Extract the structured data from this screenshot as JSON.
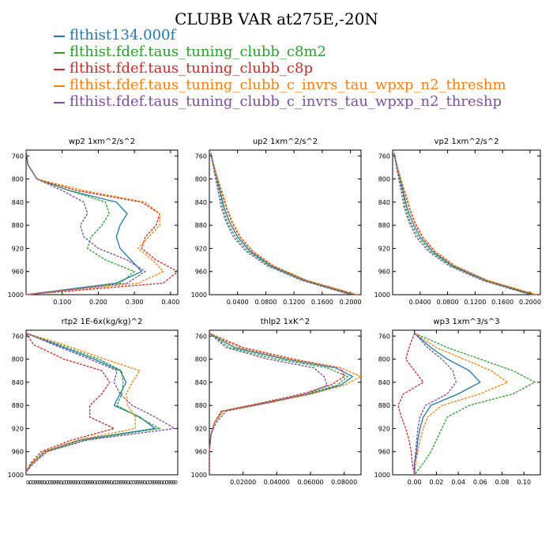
{
  "title": "CLUBB VAR at275E,-20N",
  "legend": [
    {
      "label": "flthist134.000f",
      "color": "#1f77b4",
      "dash": "solid"
    },
    {
      "label": "flthist.fdef.taus_tuning_clubb_c8m2",
      "color": "#2ca02c",
      "dash": "dashed"
    },
    {
      "label": "flthist.fdef.taus_tuning_clubb_c8p",
      "color": "#d62728",
      "dash": "dashed"
    },
    {
      "label": "flthist.fdef.taus_tuning_clubb_c_invrs_tau_wpxp_n2_threshm",
      "color": "#ff7f0e",
      "dash": "dashed"
    },
    {
      "label": "flthist.fdef.taus_tuning_clubb_c_invrs_tau_wpxp_n2_threshp",
      "color": "#7e4ea3",
      "dash": "dashed"
    }
  ],
  "chart_data": [
    {
      "type": "line",
      "title": "wp2  1xm^2/s^2",
      "xlim": [
        0,
        0.42
      ],
      "ylim": [
        1000,
        750
      ],
      "x_ticks": [
        "0.100",
        "0.200",
        "0.300",
        "0.400"
      ],
      "x_tick_values": [
        0.1,
        0.2,
        0.3,
        0.4
      ],
      "y_ticks": [
        "760",
        "800",
        "840",
        "880",
        "920",
        "960",
        "1000"
      ],
      "y": [
        750,
        775,
        800,
        820,
        840,
        860,
        880,
        900,
        920,
        940,
        960,
        980,
        1000
      ],
      "series": [
        {
          "values": [
            0.0,
            0.005,
            0.03,
            0.12,
            0.25,
            0.28,
            0.26,
            0.25,
            0.26,
            0.29,
            0.32,
            0.25,
            0.0
          ]
        },
        {
          "values": [
            0.0,
            0.005,
            0.03,
            0.12,
            0.22,
            0.23,
            0.21,
            0.18,
            0.17,
            0.22,
            0.3,
            0.26,
            0.0
          ]
        },
        {
          "values": [
            0.0,
            0.005,
            0.03,
            0.14,
            0.32,
            0.37,
            0.36,
            0.33,
            0.32,
            0.36,
            0.42,
            0.38,
            0.0
          ]
        },
        {
          "values": [
            0.0,
            0.005,
            0.03,
            0.16,
            0.33,
            0.37,
            0.37,
            0.34,
            0.31,
            0.35,
            0.38,
            0.31,
            0.0
          ]
        },
        {
          "values": [
            0.0,
            0.005,
            0.03,
            0.1,
            0.16,
            0.17,
            0.15,
            0.16,
            0.2,
            0.28,
            0.33,
            0.28,
            0.0
          ]
        }
      ]
    },
    {
      "type": "line",
      "title": "up2  1xm^2/s^2",
      "xlim": [
        0,
        0.215
      ],
      "ylim": [
        1000,
        750
      ],
      "x_ticks": [
        "0.0400",
        "0.0800",
        "0.1200",
        "0.1600",
        "0.2000"
      ],
      "x_tick_values": [
        0.04,
        0.08,
        0.12,
        0.16,
        0.2
      ],
      "y_ticks": [
        "760",
        "800",
        "840",
        "880",
        "920",
        "960",
        "1000"
      ],
      "y": [
        755,
        775,
        800,
        825,
        850,
        875,
        900,
        925,
        950,
        975,
        1000
      ],
      "series": [
        {
          "values": [
            0.002,
            0.006,
            0.011,
            0.016,
            0.021,
            0.029,
            0.04,
            0.058,
            0.087,
            0.135,
            0.205
          ]
        },
        {
          "values": [
            0.002,
            0.005,
            0.01,
            0.015,
            0.019,
            0.026,
            0.037,
            0.055,
            0.085,
            0.133,
            0.203
          ]
        },
        {
          "values": [
            0.002,
            0.006,
            0.012,
            0.018,
            0.024,
            0.032,
            0.043,
            0.061,
            0.09,
            0.137,
            0.208
          ]
        },
        {
          "values": [
            0.002,
            0.006,
            0.012,
            0.019,
            0.025,
            0.033,
            0.044,
            0.062,
            0.091,
            0.138,
            0.21
          ]
        },
        {
          "values": [
            0.002,
            0.005,
            0.009,
            0.013,
            0.017,
            0.024,
            0.034,
            0.052,
            0.082,
            0.13,
            0.2
          ]
        }
      ]
    },
    {
      "type": "line",
      "title": "vp2  1xm^2/s^2",
      "xlim": [
        0,
        0.215
      ],
      "ylim": [
        1000,
        750
      ],
      "x_ticks": [
        "0.0400",
        "0.0800",
        "0.1200",
        "0.1600",
        "0.2000"
      ],
      "x_tick_values": [
        0.04,
        0.08,
        0.12,
        0.16,
        0.2
      ],
      "y_ticks": [
        "760",
        "800",
        "840",
        "880",
        "920",
        "960",
        "1000"
      ],
      "y": [
        755,
        775,
        800,
        825,
        850,
        875,
        900,
        925,
        950,
        975,
        1000
      ],
      "series": [
        {
          "values": [
            0.002,
            0.006,
            0.011,
            0.016,
            0.021,
            0.029,
            0.04,
            0.058,
            0.087,
            0.135,
            0.205
          ]
        },
        {
          "values": [
            0.002,
            0.005,
            0.01,
            0.015,
            0.019,
            0.026,
            0.037,
            0.055,
            0.085,
            0.133,
            0.203
          ]
        },
        {
          "values": [
            0.002,
            0.006,
            0.012,
            0.018,
            0.024,
            0.032,
            0.043,
            0.061,
            0.09,
            0.137,
            0.208
          ]
        },
        {
          "values": [
            0.002,
            0.006,
            0.012,
            0.019,
            0.025,
            0.033,
            0.044,
            0.062,
            0.091,
            0.138,
            0.21
          ]
        },
        {
          "values": [
            0.002,
            0.005,
            0.009,
            0.013,
            0.017,
            0.024,
            0.034,
            0.052,
            0.082,
            0.13,
            0.2
          ]
        }
      ]
    },
    {
      "type": "line",
      "title": "rtp2  1E-6x(kg/kg)^2",
      "xlim": [
        0,
        1.0
      ],
      "ylim": [
        1000,
        750
      ],
      "x_ticks": [
        "0.0099990.0099990.0099990.0099990.0099990.0099990.0099990.0099990.009990"
      ],
      "x_tick_values": [
        0.5
      ],
      "y_ticks": [
        "760",
        "800",
        "840",
        "880",
        "920",
        "960",
        "1000"
      ],
      "y": [
        755,
        775,
        800,
        820,
        840,
        860,
        880,
        900,
        920,
        940,
        960,
        980,
        995
      ],
      "series": [
        {
          "values": [
            0.0,
            0.2,
            0.45,
            0.62,
            0.66,
            0.62,
            0.58,
            0.75,
            0.85,
            0.35,
            0.12,
            0.04,
            0.0
          ]
        },
        {
          "values": [
            0.0,
            0.22,
            0.48,
            0.63,
            0.64,
            0.63,
            0.6,
            0.74,
            0.88,
            0.38,
            0.13,
            0.04,
            0.0
          ]
        },
        {
          "values": [
            0.0,
            0.05,
            0.25,
            0.5,
            0.55,
            0.5,
            0.42,
            0.42,
            0.58,
            0.3,
            0.1,
            0.03,
            0.0
          ]
        },
        {
          "values": [
            0.0,
            0.25,
            0.52,
            0.75,
            0.7,
            0.66,
            0.67,
            0.72,
            0.72,
            0.34,
            0.12,
            0.04,
            0.0
          ]
        },
        {
          "values": [
            0.0,
            0.18,
            0.42,
            0.6,
            0.58,
            0.62,
            0.7,
            0.85,
            0.98,
            0.4,
            0.14,
            0.05,
            0.0
          ]
        }
      ]
    },
    {
      "type": "line",
      "title": "thlp2  1xK^2",
      "xlim": [
        0,
        0.09
      ],
      "ylim": [
        1000,
        750
      ],
      "x_ticks": [
        "0.02000",
        "0.04000",
        "0.06000",
        "0.08000"
      ],
      "x_tick_values": [
        0.02,
        0.04,
        0.06,
        0.08
      ],
      "y_ticks": [
        "760",
        "800",
        "840",
        "880",
        "920",
        "960",
        "1000"
      ],
      "y": [
        755,
        780,
        800,
        815,
        830,
        845,
        860,
        875,
        890,
        910,
        930,
        960,
        1000
      ],
      "series": [
        {
          "values": [
            0.0,
            0.015,
            0.045,
            0.075,
            0.085,
            0.078,
            0.06,
            0.035,
            0.008,
            0.003,
            0.001,
            0.0,
            0.0
          ]
        },
        {
          "values": [
            0.0,
            0.012,
            0.04,
            0.07,
            0.082,
            0.076,
            0.058,
            0.034,
            0.008,
            0.003,
            0.001,
            0.0,
            0.0
          ]
        },
        {
          "values": [
            0.0,
            0.02,
            0.05,
            0.078,
            0.08,
            0.072,
            0.055,
            0.032,
            0.007,
            0.003,
            0.001,
            0.0,
            0.0
          ]
        },
        {
          "values": [
            0.0,
            0.018,
            0.048,
            0.078,
            0.09,
            0.08,
            0.061,
            0.036,
            0.008,
            0.003,
            0.001,
            0.0,
            0.0
          ]
        },
        {
          "values": [
            0.0,
            0.01,
            0.035,
            0.062,
            0.068,
            0.07,
            0.058,
            0.036,
            0.01,
            0.004,
            0.001,
            0.0,
            0.0
          ]
        }
      ]
    },
    {
      "type": "line",
      "title": "wp3  1xm^3/s^3",
      "xlim": [
        -0.02,
        0.115
      ],
      "ylim": [
        1000,
        750
      ],
      "x_ticks": [
        "0.00",
        "0.02",
        "0.04",
        "0.06",
        "0.08",
        "0.10"
      ],
      "x_tick_values": [
        0.0,
        0.02,
        0.04,
        0.06,
        0.08,
        0.1
      ],
      "y_ticks": [
        "760",
        "800",
        "840",
        "880",
        "920",
        "960",
        "1000"
      ],
      "y": [
        755,
        780,
        800,
        820,
        840,
        860,
        880,
        900,
        920,
        940,
        960,
        980,
        1000
      ],
      "series": [
        {
          "values": [
            0.0,
            0.015,
            0.03,
            0.05,
            0.06,
            0.04,
            0.015,
            0.008,
            0.005,
            0.003,
            0.002,
            0.0,
            0.0
          ]
        },
        {
          "values": [
            0.0,
            0.03,
            0.06,
            0.09,
            0.11,
            0.09,
            0.05,
            0.03,
            0.025,
            0.02,
            0.015,
            0.008,
            0.0
          ]
        },
        {
          "values": [
            0.0,
            -0.005,
            -0.008,
            0.0,
            0.008,
            -0.01,
            -0.015,
            -0.012,
            -0.008,
            -0.005,
            -0.003,
            -0.002,
            0.0
          ]
        },
        {
          "values": [
            0.0,
            0.02,
            0.045,
            0.07,
            0.085,
            0.06,
            0.025,
            0.012,
            0.008,
            0.005,
            0.003,
            0.001,
            0.0
          ]
        },
        {
          "values": [
            0.0,
            0.012,
            0.025,
            0.035,
            0.038,
            0.03,
            0.01,
            0.005,
            0.003,
            0.002,
            0.001,
            0.0,
            0.0
          ]
        }
      ]
    }
  ]
}
